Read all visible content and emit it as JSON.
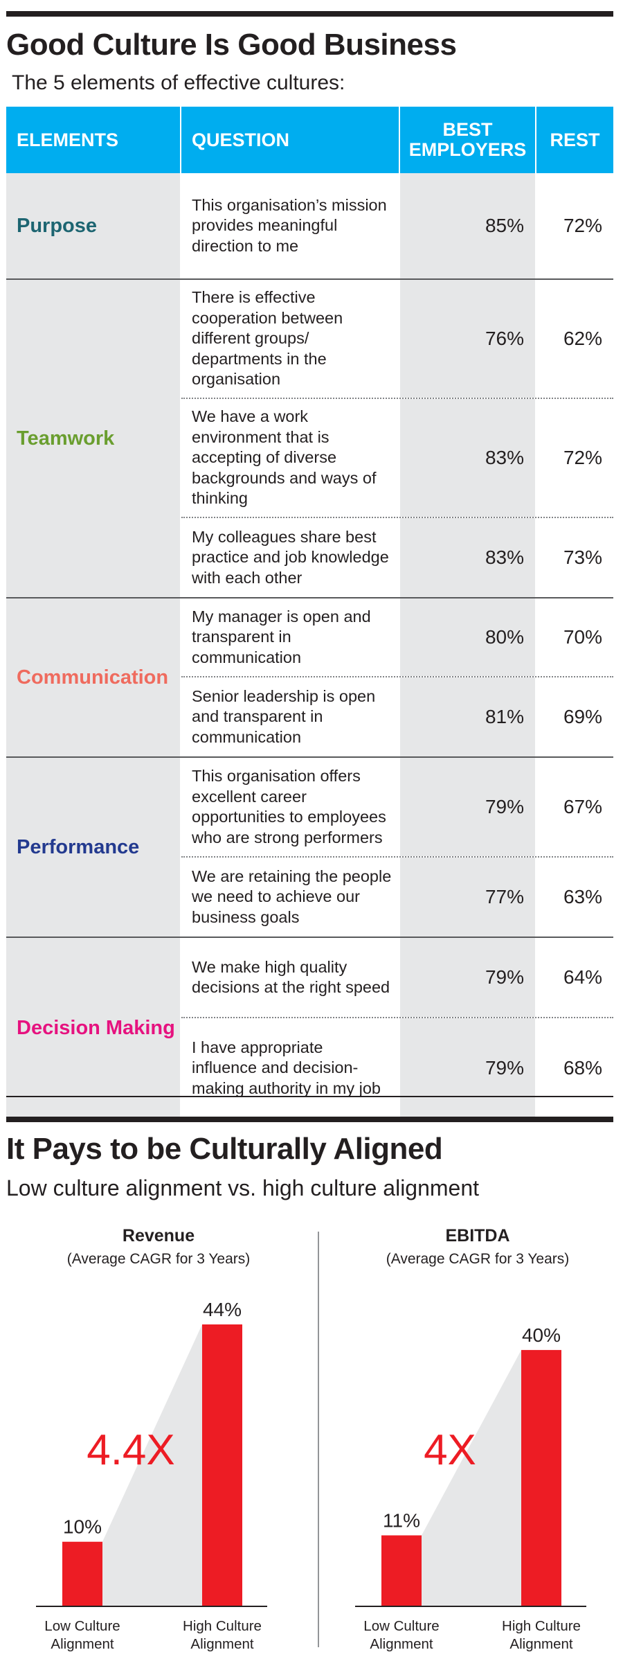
{
  "section1": {
    "title": "Good Culture Is Good Business",
    "subtitle": "The 5 elements of effective cultures:"
  },
  "table": {
    "headers": {
      "elements": "ELEMENTS",
      "question": "QUESTION",
      "best_line1": "BEST",
      "best_line2": "EMPLOYERS",
      "rest": "REST"
    },
    "groups": [
      {
        "label": "Purpose",
        "color": "#1d6571",
        "rows": [
          {
            "question": "This organisation’s mission provides meaningful direction to me",
            "best": "85%",
            "rest": "72%"
          }
        ]
      },
      {
        "label": "Teamwork",
        "color": "#6a9e2f",
        "rows": [
          {
            "question": "There is effective cooperation between different groups/ departments in the organisation",
            "best": "76%",
            "rest": "62%"
          },
          {
            "question": "We have a work environment that is accepting of diverse backgrounds and ways of thinking",
            "best": "83%",
            "rest": "72%"
          },
          {
            "question": "My colleagues share best practice and job knowledge with each other",
            "best": "83%",
            "rest": "73%"
          }
        ]
      },
      {
        "label": "Communication",
        "color": "#ef6b5e",
        "rows": [
          {
            "question": "My manager is open and transparent in communication",
            "best": "80%",
            "rest": "70%"
          },
          {
            "question": "Senior leadership is open and transparent in communication",
            "best": "81%",
            "rest": "69%"
          }
        ]
      },
      {
        "label": "Performance",
        "color": "#233a8f",
        "rows": [
          {
            "question": "This organisation offers excellent career opportunities to employees who are strong performers",
            "best": "79%",
            "rest": "67%"
          },
          {
            "question": "We are retaining the people we need to achieve our business goals",
            "best": "77%",
            "rest": "63%"
          }
        ]
      },
      {
        "label": "Decision Making",
        "color": "#e6127f",
        "rows": [
          {
            "question": "We make high quality decisions at the right speed",
            "best": "79%",
            "rest": "64%"
          },
          {
            "question": "I have appropriate influence and decision-making authority in my job",
            "best": "79%",
            "rest": "68%"
          }
        ]
      }
    ]
  },
  "section2": {
    "title": "It Pays to be Culturally Aligned",
    "subtitle": "Low culture alignment vs. high culture alignment"
  },
  "chart_data": [
    {
      "type": "bar",
      "title": "Revenue",
      "subtitle": "(Average CAGR for 3 Years)",
      "categories": [
        "Low Culture Alignment",
        "High Culture Alignment"
      ],
      "category_lines": [
        [
          "Low Culture",
          "Alignment"
        ],
        [
          "High Culture",
          "Alignment"
        ]
      ],
      "values": [
        10,
        44
      ],
      "value_labels": [
        "10%",
        "44%"
      ],
      "multiplier_label": "4.4X",
      "ylim": [
        0,
        44
      ],
      "bar_color": "#ed1c24",
      "wedge_color": "#e6e7e8"
    },
    {
      "type": "bar",
      "title": "EBITDA",
      "subtitle": "(Average CAGR for 3 Years)",
      "categories": [
        "Low Culture Alignment",
        "High Culture Alignment"
      ],
      "category_lines": [
        [
          "Low Culture",
          "Alignment"
        ],
        [
          "High Culture",
          "Alignment"
        ]
      ],
      "values": [
        11,
        40
      ],
      "value_labels": [
        "11%",
        "40%"
      ],
      "multiplier_label": "4X",
      "ylim": [
        0,
        44
      ],
      "bar_color": "#ed1c24",
      "wedge_color": "#e6e7e8"
    }
  ]
}
